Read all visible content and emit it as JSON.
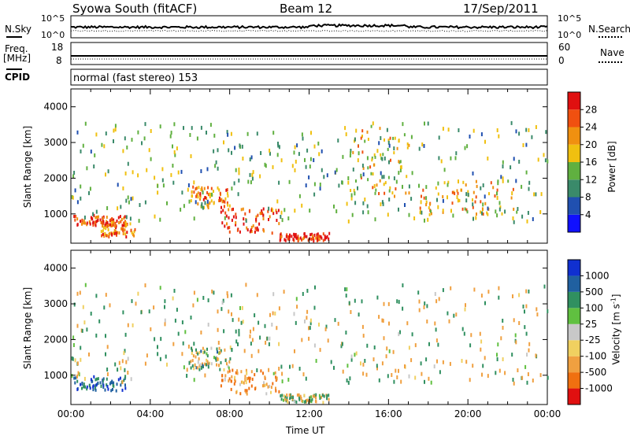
{
  "header": {
    "title": "Syowa South (fitACF)",
    "beam": "Beam 12",
    "date": "17/Sep/2011"
  },
  "strip1": {
    "left_label": "N.Sky",
    "left_top": "10^5",
    "left_bottom": "10^0",
    "right_top": "10^5",
    "right_bottom": "10^0",
    "right_label": "N.Search"
  },
  "strip2": {
    "left_label_line1": "Freq.",
    "left_label_line2": "[MHz]",
    "left_top": "18",
    "left_bottom": "8",
    "right_top": "60",
    "right_bottom": "0",
    "right_label": "Nave"
  },
  "cpid": {
    "label": "CPID",
    "text": "normal (fast stereo) 153"
  },
  "xaxis": {
    "label": "Time UT",
    "ticks": [
      "00:00",
      "04:00",
      "08:00",
      "12:00",
      "16:00",
      "20:00",
      "00:00"
    ]
  },
  "yaxis": {
    "label": "Slant Range [km]",
    "ticks": [
      "1000",
      "2000",
      "3000",
      "4000"
    ]
  },
  "power_scale": {
    "label": "Power [dB]",
    "ticks": [
      "4",
      "8",
      "12",
      "16",
      "20",
      "24",
      "28"
    ],
    "colors": [
      "#1010ff",
      "#2050b0",
      "#3a8a6a",
      "#60b040",
      "#f0c010",
      "#f09010",
      "#f05010",
      "#e01010"
    ]
  },
  "velocity_scale": {
    "label_main": "Velocity [m s",
    "label_sup": "-1",
    "label_end": "]",
    "ticks": [
      "1000",
      "500",
      "100",
      "25",
      "-25",
      "-100",
      "-500",
      "-1000"
    ],
    "colors": [
      "#1030d0",
      "#2060a0",
      "#309060",
      "#60c040",
      "#c8c8c8",
      "#f0d060",
      "#f0a040",
      "#f07010",
      "#e01010"
    ]
  },
  "chart_data": [
    {
      "type": "line",
      "title": "N.Sky",
      "x_range_hours": [
        0,
        24
      ],
      "y_scale": "log",
      "ylim": [
        1,
        100000
      ],
      "series": []
    },
    {
      "type": "line",
      "title": "Freq.",
      "x_range_hours": [
        0,
        24
      ],
      "ylim": [
        8,
        18
      ],
      "series": []
    },
    {
      "type": "heatmap",
      "title": "Power [dB]",
      "xlabel": "Time UT",
      "ylabel": "Slant Range [km]",
      "xlim_hours": [
        0,
        24
      ],
      "ylim_km": [
        180,
        4500
      ],
      "clim": [
        0,
        30
      ],
      "clusters": [
        {
          "t": [
            0.0,
            2.8
          ],
          "r": [
            700,
            1000
          ],
          "value": 25
        },
        {
          "t": [
            1.5,
            3.2
          ],
          "r": [
            400,
            800
          ],
          "value": 22
        },
        {
          "t": [
            6.0,
            8.0
          ],
          "r": [
            1200,
            1800
          ],
          "value": 22
        },
        {
          "t": [
            7.5,
            10.5
          ],
          "r": [
            500,
            1200
          ],
          "value": 26
        },
        {
          "t": [
            10.5,
            13.0
          ],
          "r": [
            280,
            500
          ],
          "value": 27
        },
        {
          "t": [
            14.0,
            17.0
          ],
          "r": [
            1500,
            3500
          ],
          "value": 18
        },
        {
          "t": [
            17.5,
            22.5
          ],
          "r": [
            1000,
            2000
          ],
          "value": 20
        },
        {
          "t": [
            0.0,
            24.0
          ],
          "r": [
            800,
            3600
          ],
          "value": 12
        }
      ]
    },
    {
      "type": "heatmap",
      "title": "Velocity [m s-1]",
      "xlabel": "Time UT",
      "ylabel": "Slant Range [km]",
      "xlim_hours": [
        0,
        24
      ],
      "ylim_km": [
        180,
        4500
      ],
      "clim": [
        -1000,
        1000
      ],
      "clusters": [
        {
          "t": [
            0.0,
            2.8
          ],
          "r": [
            600,
            1000
          ],
          "value": 700
        },
        {
          "t": [
            6.0,
            8.0
          ],
          "r": [
            1200,
            1800
          ],
          "value": 100
        },
        {
          "t": [
            7.5,
            10.5
          ],
          "r": [
            500,
            1200
          ],
          "value": -400
        },
        {
          "t": [
            10.5,
            13.0
          ],
          "r": [
            280,
            500
          ],
          "value": 60
        },
        {
          "t": [
            0.0,
            24.0
          ],
          "r": [
            800,
            3600
          ],
          "value": 0
        }
      ]
    }
  ]
}
